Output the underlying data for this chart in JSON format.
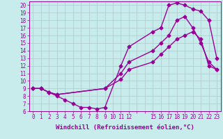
{
  "xlabel": "Windchill (Refroidissement éolien,°C)",
  "bg_color": "#c8ecec",
  "line_color": "#990099",
  "grid_color": "#b0c8c8",
  "xlim": [
    -0.5,
    23.5
  ],
  "ylim": [
    6,
    20.5
  ],
  "xtick_labels": [
    "0",
    "1",
    "2",
    "3",
    "4",
    "5",
    "6",
    "7",
    "8",
    "9",
    "10",
    "11",
    "12",
    "",
    "",
    "15",
    "16",
    "17",
    "18",
    "19",
    "20",
    "21",
    "22",
    "23"
  ],
  "xtick_positions": [
    0,
    1,
    2,
    3,
    4,
    5,
    6,
    7,
    8,
    9,
    10,
    11,
    12,
    13,
    14,
    15,
    16,
    17,
    18,
    19,
    20,
    21,
    22,
    23
  ],
  "yticks": [
    6,
    7,
    8,
    9,
    10,
    11,
    12,
    13,
    14,
    15,
    16,
    17,
    18,
    19,
    20
  ],
  "lines": [
    {
      "x": [
        0,
        1,
        2,
        3,
        4,
        5,
        6,
        7,
        8,
        9,
        11,
        12,
        15,
        16,
        17,
        18,
        19,
        20,
        21,
        22,
        23
      ],
      "y": [
        9,
        9,
        8.5,
        8,
        7.5,
        7,
        6.5,
        6.5,
        6.3,
        6.5,
        12,
        14.5,
        16.5,
        17,
        20,
        20.3,
        20,
        19.5,
        19.2,
        18,
        13
      ]
    },
    {
      "x": [
        0,
        1,
        2,
        3,
        9,
        11,
        12,
        15,
        16,
        17,
        18,
        19,
        20,
        21,
        22,
        23
      ],
      "y": [
        9,
        9,
        8.5,
        8.2,
        9,
        11,
        12.5,
        14,
        15,
        16,
        18,
        18.5,
        17,
        15,
        12.5,
        11.5
      ]
    },
    {
      "x": [
        0,
        1,
        2,
        3,
        9,
        11,
        12,
        15,
        16,
        17,
        18,
        19,
        20,
        21,
        22,
        23
      ],
      "y": [
        9,
        9,
        8.5,
        8.2,
        9,
        10.2,
        11.5,
        12.5,
        13.5,
        14.5,
        15.5,
        16,
        16.5,
        15.5,
        12,
        11.5
      ]
    }
  ],
  "marker": "D",
  "markersize": 2.5,
  "linewidth": 1.0,
  "font": "monospace",
  "xlabel_fontsize": 6.5,
  "tick_fontsize": 5.5
}
